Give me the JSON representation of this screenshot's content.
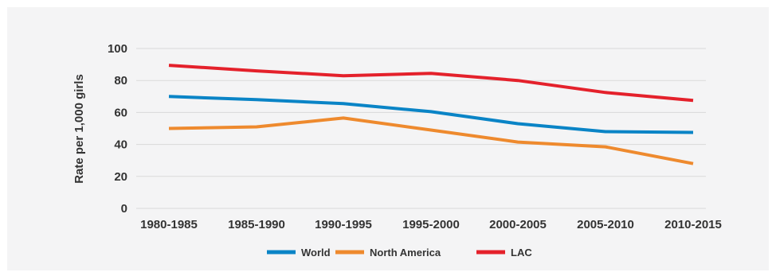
{
  "chart_data": {
    "type": "line",
    "title": "",
    "xlabel": "",
    "ylabel": "Rate per 1,000 girls",
    "categories": [
      "1980-1985",
      "1985-1990",
      "1990-1995",
      "1995-2000",
      "2000-2005",
      "2005-2010",
      "2010-2015"
    ],
    "yticks": [
      "0",
      "20",
      "40",
      "60",
      "80",
      "100"
    ],
    "ylim": [
      0,
      100
    ],
    "grid": true,
    "legend_position": "bottom",
    "series": [
      {
        "name": "World",
        "color": "#0a84c6",
        "values": [
          70,
          68,
          65.5,
          60.5,
          53,
          48,
          47.5
        ]
      },
      {
        "name": "North America",
        "color": "#ee8a2e",
        "values": [
          50,
          51,
          56.5,
          49,
          41.5,
          38.5,
          28
        ]
      },
      {
        "name": "LAC",
        "color": "#e4212b",
        "values": [
          89.5,
          86,
          83,
          84.5,
          80,
          72.5,
          67.5
        ]
      }
    ]
  },
  "colors": {
    "background": "#f4f4f5",
    "grid": "#d9d9d9",
    "text": "#333333"
  }
}
